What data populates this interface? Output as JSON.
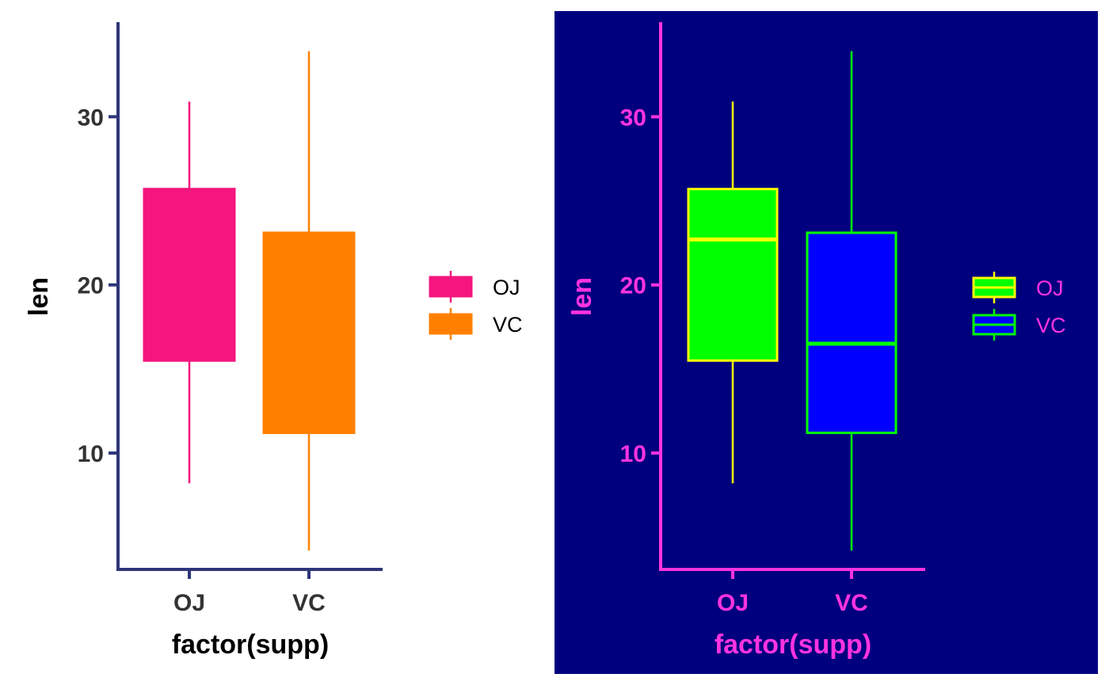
{
  "chart_data": [
    {
      "type": "boxplot",
      "xlabel": "factor(supp)",
      "ylabel": "len",
      "categories": [
        "OJ",
        "VC"
      ],
      "yticks": [
        10,
        20,
        30
      ],
      "ylim": [
        3.08,
        35.53
      ],
      "boxes": [
        {
          "category": "OJ",
          "min": 8.2,
          "q1": 15.5,
          "median": 22.7,
          "q3": 25.7,
          "max": 30.9
        },
        {
          "category": "VC",
          "min": 4.2,
          "q1": 11.2,
          "median": 16.5,
          "q3": 23.1,
          "max": 33.9
        }
      ],
      "show_median": false,
      "fills": [
        "#f5157e",
        "#ff8000"
      ],
      "outlines": [
        "#f5157e",
        "#ff8000"
      ],
      "legend": {
        "entries": [
          "OJ",
          "VC"
        ],
        "position": "right"
      },
      "colors": {
        "background": "#ffffff",
        "axis": "#2e3578",
        "tick_text": "#333333",
        "title_text": "#000000",
        "legend_text": "#000000"
      }
    },
    {
      "type": "boxplot",
      "xlabel": "factor(supp)",
      "ylabel": "len",
      "categories": [
        "OJ",
        "VC"
      ],
      "yticks": [
        10,
        20,
        30
      ],
      "ylim": [
        3.08,
        35.53
      ],
      "boxes": [
        {
          "category": "OJ",
          "min": 8.2,
          "q1": 15.5,
          "median": 22.7,
          "q3": 25.7,
          "max": 30.9
        },
        {
          "category": "VC",
          "min": 4.2,
          "q1": 11.2,
          "median": 16.5,
          "q3": 23.1,
          "max": 33.9
        }
      ],
      "show_median": true,
      "fills": [
        "#00ff00",
        "#0000ff"
      ],
      "outlines": [
        "#ffff00",
        "#00ff00"
      ],
      "legend": {
        "entries": [
          "OJ",
          "VC"
        ],
        "position": "right"
      },
      "colors": {
        "background": "#00007f",
        "axis": "#ff33e0",
        "tick_text": "#ff33e0",
        "title_text": "#ff33e0",
        "legend_text": "#ff33e0"
      }
    }
  ]
}
